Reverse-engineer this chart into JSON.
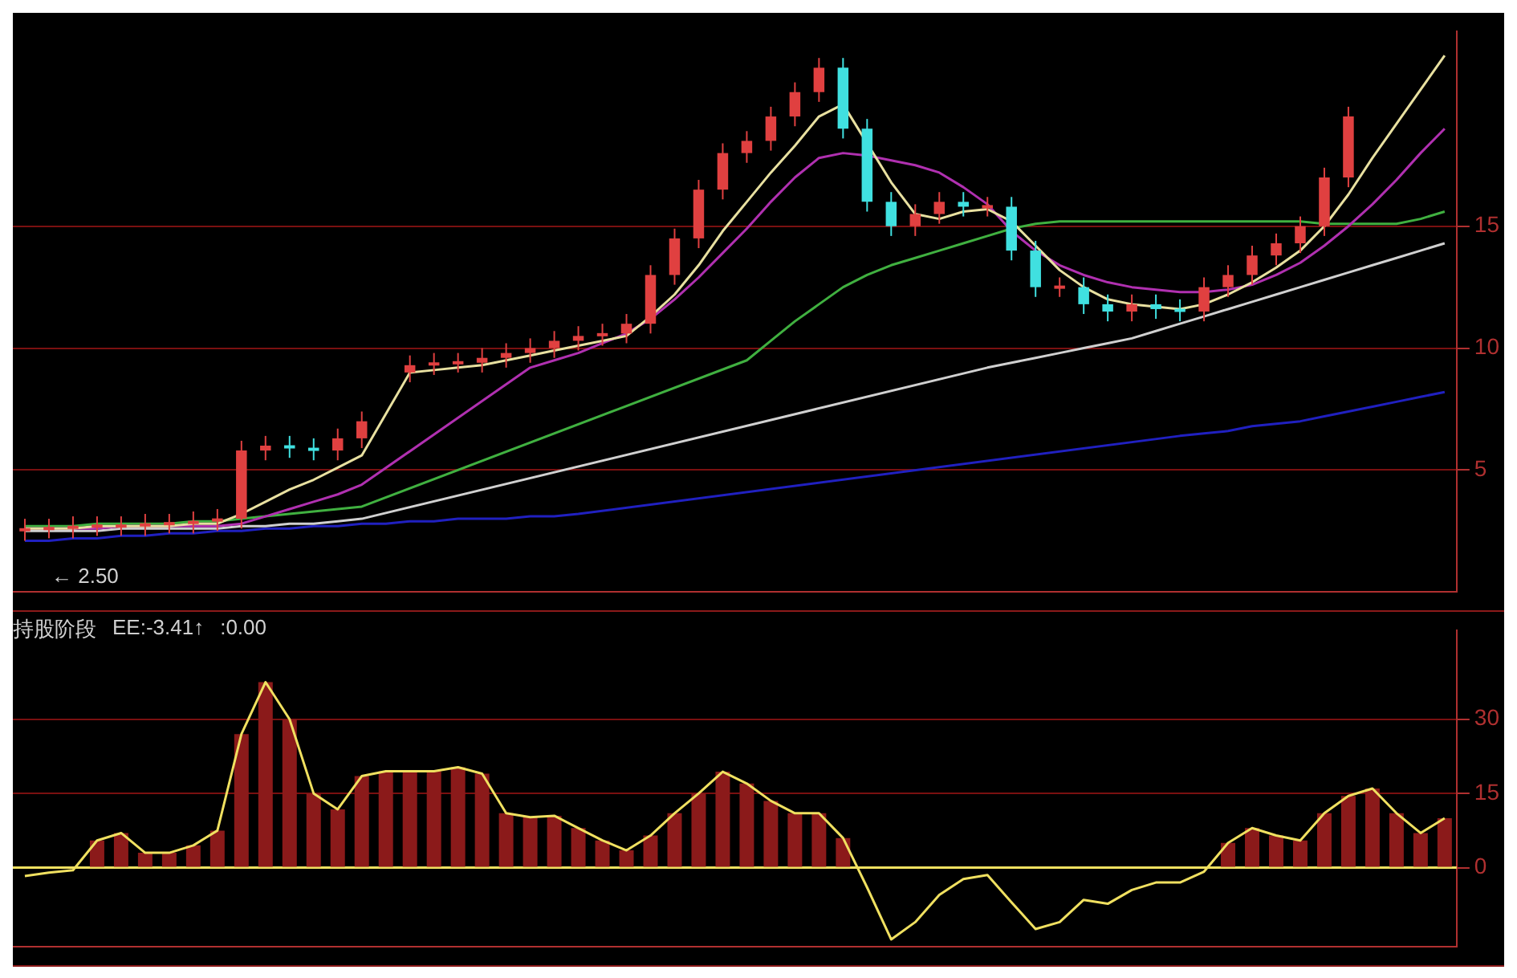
{
  "chart_data": [
    {
      "type": "candlestick",
      "annotations": [
        "← 2.50"
      ],
      "categories": [
        null,
        null,
        null,
        null,
        null,
        null,
        null,
        null,
        null,
        null,
        null,
        null,
        null,
        null,
        null,
        null,
        null,
        null,
        null,
        null,
        null,
        null,
        null,
        null,
        null,
        null,
        null,
        null,
        null,
        null,
        null,
        null,
        null,
        null,
        null,
        null,
        null,
        null,
        null,
        null,
        null,
        null,
        null,
        null,
        null,
        null,
        null,
        null,
        null,
        null,
        null,
        null,
        null,
        null,
        null,
        null,
        null,
        null,
        null,
        null
      ],
      "ohlc": [
        [
          2.5,
          3.0,
          2.1,
          2.6
        ],
        [
          2.6,
          3.0,
          2.2,
          2.6
        ],
        [
          2.6,
          3.1,
          2.2,
          2.7
        ],
        [
          2.7,
          3.1,
          2.3,
          2.7
        ],
        [
          2.7,
          3.1,
          2.3,
          2.7
        ],
        [
          2.7,
          3.2,
          2.3,
          2.8
        ],
        [
          2.8,
          3.2,
          2.4,
          2.8
        ],
        [
          2.8,
          3.3,
          2.4,
          2.9
        ],
        [
          2.9,
          3.4,
          2.5,
          3.0
        ],
        [
          3.0,
          6.2,
          2.6,
          5.8
        ],
        [
          5.8,
          6.4,
          5.4,
          6.0
        ],
        [
          6.0,
          6.4,
          5.5,
          5.9
        ],
        [
          5.9,
          6.3,
          5.4,
          5.8
        ],
        [
          5.8,
          6.7,
          5.4,
          6.3
        ],
        [
          6.3,
          7.4,
          5.9,
          7.0
        ],
        null,
        [
          9.0,
          9.7,
          8.6,
          9.3
        ],
        [
          9.3,
          9.8,
          8.9,
          9.4
        ],
        [
          9.4,
          9.8,
          9.0,
          9.4
        ],
        [
          9.4,
          10.0,
          9.0,
          9.6
        ],
        [
          9.6,
          10.2,
          9.2,
          9.8
        ],
        [
          9.8,
          10.4,
          9.4,
          10.0
        ],
        [
          10.0,
          10.7,
          9.6,
          10.3
        ],
        [
          10.3,
          10.9,
          9.9,
          10.5
        ],
        [
          10.5,
          11.0,
          10.1,
          10.6
        ],
        [
          10.6,
          11.4,
          10.2,
          11.0
        ],
        [
          11.0,
          13.4,
          10.6,
          13.0
        ],
        [
          13.0,
          14.9,
          12.6,
          14.5
        ],
        [
          14.5,
          16.9,
          14.1,
          16.5
        ],
        [
          16.5,
          18.4,
          16.1,
          18.0
        ],
        [
          18.0,
          18.9,
          17.6,
          18.5
        ],
        [
          18.5,
          19.9,
          18.1,
          19.5
        ],
        [
          19.5,
          20.9,
          19.1,
          20.5
        ],
        [
          20.5,
          21.9,
          20.1,
          21.5
        ],
        [
          21.5,
          21.9,
          18.6,
          19.0
        ],
        [
          19.0,
          19.4,
          15.6,
          16.0
        ],
        [
          16.0,
          16.4,
          14.6,
          15.0
        ],
        [
          15.0,
          15.9,
          14.6,
          15.5
        ],
        [
          15.5,
          16.4,
          15.1,
          16.0
        ],
        [
          16.0,
          16.4,
          15.4,
          15.8
        ],
        [
          15.8,
          16.2,
          15.4,
          15.8
        ],
        [
          15.8,
          16.2,
          13.6,
          14.0
        ],
        [
          14.0,
          14.4,
          12.1,
          12.5
        ],
        [
          12.5,
          12.9,
          12.1,
          12.5
        ],
        [
          12.5,
          12.9,
          11.4,
          11.8
        ],
        [
          11.8,
          12.2,
          11.1,
          11.5
        ],
        [
          11.5,
          12.2,
          11.1,
          11.8
        ],
        [
          11.8,
          12.2,
          11.2,
          11.6
        ],
        [
          11.6,
          12.0,
          11.1,
          11.5
        ],
        [
          11.5,
          12.9,
          11.1,
          12.5
        ],
        [
          12.5,
          13.4,
          12.1,
          13.0
        ],
        [
          13.0,
          14.2,
          12.6,
          13.8
        ],
        [
          13.8,
          14.7,
          13.4,
          14.3
        ],
        [
          14.3,
          15.4,
          13.9,
          15.0
        ],
        [
          15.0,
          17.4,
          14.6,
          17.0
        ],
        [
          17.0,
          19.9,
          16.6,
          19.5
        ],
        null,
        null,
        null,
        null
      ],
      "colors": [
        "#e04040",
        "#e04040",
        "#e04040",
        "#e04040",
        "#e04040",
        "#e04040",
        "#e04040",
        "#e04040",
        "#e04040",
        "#e04040",
        "#e04040",
        "#40e0e0",
        "#40e0e0",
        "#e04040",
        "#e04040",
        "#e04040",
        "#e04040",
        "#e04040",
        "#e04040",
        "#e04040",
        "#e04040",
        "#e04040",
        "#e04040",
        "#e04040",
        "#e04040",
        "#e04040",
        "#e04040",
        "#e04040",
        "#e04040",
        "#e04040",
        "#e04040",
        "#e04040",
        "#e04040",
        "#e04040",
        "#40e0e0",
        "#40e0e0",
        "#40e0e0",
        "#e04040",
        "#e04040",
        "#40e0e0",
        "#e04040",
        "#40e0e0",
        "#40e0e0",
        "#e04040",
        "#40e0e0",
        "#40e0e0",
        "#e04040",
        "#40e0e0",
        "#40e0e0",
        "#e04040",
        "#e04040",
        "#e04040",
        "#e04040",
        "#e04040",
        "#e04040",
        "#e04040",
        "#e04040",
        "#e04040",
        "#e04040",
        "#e04040"
      ],
      "series": [
        {
          "type": "line",
          "color": "#e8e0a0",
          "values": [
            2.6,
            2.6,
            2.6,
            2.7,
            2.7,
            2.7,
            2.7,
            2.8,
            2.8,
            3.2,
            3.7,
            4.2,
            4.6,
            5.1,
            5.6,
            null,
            9.0,
            9.1,
            9.2,
            9.3,
            9.5,
            9.7,
            9.9,
            10.1,
            10.3,
            10.5,
            11.3,
            12.2,
            13.4,
            14.8,
            16.0,
            17.2,
            18.3,
            19.5,
            20.0,
            null,
            16.8,
            15.5,
            15.3,
            15.6,
            15.7,
            15.2,
            14.2,
            13.2,
            12.5,
            12.0,
            11.8,
            11.7,
            11.6,
            11.8,
            12.2,
            12.7,
            13.3,
            14.0,
            15.0,
            16.3,
            17.8,
            19.2,
            20.6,
            22.0
          ]
        },
        {
          "type": "line",
          "color": "#b030b0",
          "values": [
            2.6,
            2.6,
            2.6,
            2.6,
            2.7,
            2.7,
            2.7,
            2.7,
            2.7,
            2.8,
            3.1,
            3.4,
            3.7,
            4.0,
            4.4,
            null,
            null,
            null,
            null,
            null,
            null,
            9.2,
            9.5,
            9.8,
            10.2,
            10.6,
            11.2,
            12.0,
            12.9,
            13.9,
            14.9,
            16.0,
            17.0,
            17.8,
            18.0,
            17.9,
            17.7,
            17.5,
            17.2,
            16.6,
            15.9,
            14.8,
            14.0,
            13.4,
            13.0,
            12.7,
            12.5,
            12.4,
            12.3,
            12.3,
            12.4,
            12.6,
            13.0,
            13.5,
            14.2,
            15.0,
            15.9,
            16.9,
            18.0,
            19.0
          ]
        },
        {
          "type": "line",
          "color": "#40b040",
          "values": [
            2.7,
            2.7,
            2.7,
            2.8,
            2.8,
            2.8,
            2.8,
            2.9,
            2.9,
            3.0,
            3.1,
            3.2,
            3.3,
            3.4,
            3.5,
            null,
            null,
            null,
            null,
            null,
            null,
            null,
            null,
            null,
            null,
            null,
            null,
            null,
            null,
            null,
            9.5,
            10.3,
            11.1,
            11.8,
            12.5,
            13.0,
            13.4,
            13.7,
            14.0,
            14.3,
            14.6,
            14.9,
            15.1,
            15.2,
            15.2,
            15.2,
            15.2,
            15.2,
            15.2,
            15.2,
            15.2,
            15.2,
            15.2,
            15.2,
            15.1,
            15.1,
            15.1,
            15.1,
            15.3,
            15.6
          ]
        },
        {
          "type": "line",
          "color": "#d0d0d0",
          "values": [
            2.5,
            2.5,
            2.5,
            2.5,
            2.6,
            2.6,
            2.6,
            2.6,
            2.6,
            2.7,
            2.7,
            2.8,
            2.8,
            2.9,
            3.0,
            null,
            null,
            null,
            null,
            null,
            null,
            null,
            null,
            null,
            null,
            null,
            null,
            null,
            null,
            null,
            null,
            null,
            null,
            null,
            null,
            null,
            null,
            null,
            null,
            null,
            9.2,
            9.4,
            9.6,
            9.8,
            10.0,
            10.2,
            10.4,
            10.7,
            11.0,
            11.3,
            11.6,
            11.9,
            12.2,
            12.5,
            12.8,
            13.1,
            13.4,
            13.7,
            14.0,
            14.3
          ]
        },
        {
          "type": "line",
          "color": "#2020c0",
          "values": [
            2.1,
            2.1,
            2.2,
            2.2,
            2.3,
            2.3,
            2.4,
            2.4,
            2.5,
            2.5,
            2.6,
            2.6,
            2.7,
            2.7,
            2.8,
            2.8,
            2.9,
            2.9,
            3.0,
            3.0,
            3.0,
            3.1,
            3.1,
            3.2,
            null,
            null,
            null,
            null,
            null,
            null,
            null,
            null,
            null,
            null,
            null,
            null,
            null,
            null,
            null,
            null,
            null,
            null,
            null,
            null,
            null,
            null,
            null,
            null,
            6.4,
            6.5,
            6.6,
            6.8,
            6.9,
            7.0,
            7.2,
            7.4,
            7.6,
            7.8,
            8.0,
            8.2
          ]
        }
      ],
      "ylim": [
        0,
        23
      ],
      "yticks": [
        5,
        10,
        15
      ],
      "grid": "y",
      "tick_labels": "y"
    },
    {
      "type": "bar",
      "title": "持股阶段",
      "annotations": [
        "EE:-3.41↑",
        ":0.00"
      ],
      "categories": [
        null,
        null,
        null,
        null,
        null,
        null,
        null,
        null,
        null,
        null,
        null,
        null,
        null,
        null,
        null,
        null,
        null,
        null,
        null,
        null,
        null,
        null,
        null,
        null,
        null,
        null,
        null,
        null,
        null,
        null,
        null,
        null,
        null,
        null,
        null,
        null,
        null,
        null,
        null,
        null,
        null,
        null,
        null,
        null,
        null,
        null,
        null,
        null,
        null,
        null,
        null,
        null,
        null,
        null,
        null,
        null,
        null,
        null,
        null,
        null
      ],
      "series": [
        {
          "type": "bar",
          "color": "#8b1a1a",
          "values": [
            null,
            null,
            null,
            5.5,
            7,
            3,
            3,
            4.5,
            7.5,
            27,
            37.5,
            30,
            15,
            11.8,
            18.5,
            19.5,
            19.5,
            19.5,
            20.3,
            19,
            11,
            10.2,
            10.5,
            8,
            5.5,
            3.5,
            6.5,
            11,
            15,
            19.4,
            17,
            13.5,
            11,
            11,
            6,
            null,
            null,
            null,
            null,
            null,
            null,
            null,
            null,
            null,
            null,
            null,
            null,
            null,
            null,
            null,
            5,
            8,
            6.5,
            5.5,
            11,
            14.5,
            16,
            11,
            7,
            10
          ]
        },
        {
          "type": "line",
          "color": "#f0e060",
          "values": [
            -1.7,
            -1.0,
            -0.5,
            5.5,
            7,
            3,
            3,
            4.5,
            7.5,
            27,
            37.5,
            30,
            15,
            11.8,
            18.5,
            19.5,
            19.5,
            19.5,
            20.3,
            19,
            11,
            10.2,
            10.5,
            8,
            5.5,
            3.5,
            6.5,
            11,
            15,
            19.4,
            17,
            13.5,
            11,
            11,
            6,
            -4,
            -14.5,
            -11,
            -5.5,
            -2.3,
            -1.5,
            -7,
            -12.4,
            -11,
            -6.5,
            -7.3,
            -4.5,
            -3,
            -3,
            -0.8,
            5,
            8,
            6.5,
            5.5,
            11,
            14.5,
            16,
            11,
            7,
            10
          ]
        }
      ],
      "ref_lines": [
        {
          "axis": "y",
          "value": 0,
          "color": "#f0e060"
        }
      ],
      "ylim": [
        -16,
        48
      ],
      "yticks": [
        0,
        15,
        30
      ],
      "grid": "y",
      "tick_labels": "y"
    }
  ]
}
